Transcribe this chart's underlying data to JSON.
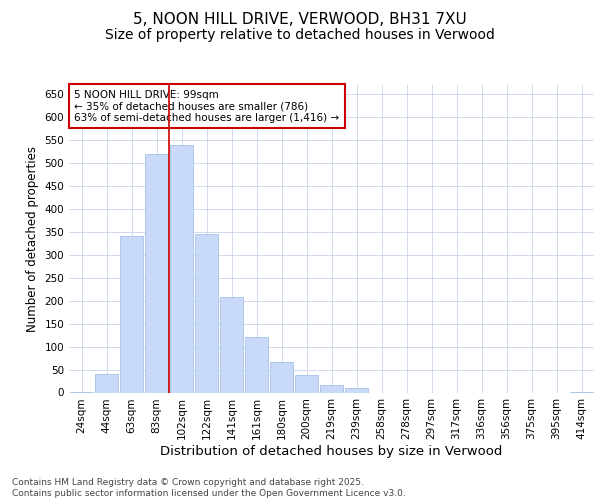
{
  "title": "5, NOON HILL DRIVE, VERWOOD, BH31 7XU",
  "subtitle": "Size of property relative to detached houses in Verwood",
  "xlabel": "Distribution of detached houses by size in Verwood",
  "ylabel": "Number of detached properties",
  "categories": [
    "24sqm",
    "44sqm",
    "63sqm",
    "83sqm",
    "102sqm",
    "122sqm",
    "141sqm",
    "161sqm",
    "180sqm",
    "200sqm",
    "219sqm",
    "239sqm",
    "258sqm",
    "278sqm",
    "297sqm",
    "317sqm",
    "336sqm",
    "356sqm",
    "375sqm",
    "395sqm",
    "414sqm"
  ],
  "bar_heights": [
    2,
    40,
    340,
    520,
    540,
    345,
    207,
    120,
    67,
    38,
    17,
    10,
    0,
    0,
    0,
    0,
    0,
    0,
    0,
    0,
    2
  ],
  "bar_color": "#c9daf8",
  "bar_edge_color": "#9ab7e6",
  "vline_index": 3.5,
  "vline_color": "#cc0000",
  "annotation_text": "5 NOON HILL DRIVE: 99sqm\n← 35% of detached houses are smaller (786)\n63% of semi-detached houses are larger (1,416) →",
  "annotation_box_color": "#ffffff",
  "annotation_box_edge": "#cc0000",
  "ylim": [
    0,
    670
  ],
  "yticks": [
    0,
    50,
    100,
    150,
    200,
    250,
    300,
    350,
    400,
    450,
    500,
    550,
    600,
    650
  ],
  "background_color": "#ffffff",
  "grid_color": "#c8d4e8",
  "footer": "Contains HM Land Registry data © Crown copyright and database right 2025.\nContains public sector information licensed under the Open Government Licence v3.0.",
  "title_fontsize": 11,
  "subtitle_fontsize": 10,
  "xlabel_fontsize": 9.5,
  "ylabel_fontsize": 8.5,
  "tick_fontsize": 7.5,
  "ann_fontsize": 7.5,
  "footer_fontsize": 6.5
}
